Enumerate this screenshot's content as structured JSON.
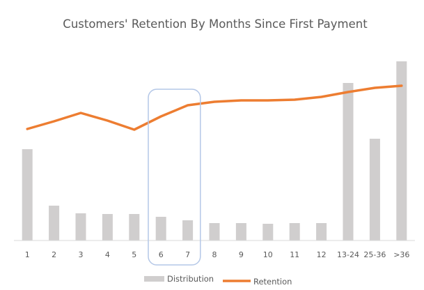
{
  "chart_data": {
    "type": "bar",
    "title": "Customers' Retention By Months Since First Payment",
    "xlabel": "",
    "ylabel": "",
    "categories": [
      "1",
      "2",
      "3",
      "4",
      "5",
      "6",
      "7",
      "8",
      "9",
      "10",
      "11",
      "12",
      "13-24",
      "25-36",
      ">36"
    ],
    "series": [
      {
        "name": "Distribution",
        "type": "bar",
        "color": "#d0cece",
        "values": [
          131,
          50,
          39,
          38,
          38,
          34,
          29,
          25,
          25,
          24,
          25,
          25,
          226,
          146,
          257
        ]
      },
      {
        "name": "Retention",
        "type": "line",
        "color": "#ed7d31",
        "values": [
          160,
          171,
          183,
          172,
          159,
          178,
          194,
          199,
          201,
          201,
          202,
          206,
          213,
          219,
          222
        ]
      }
    ],
    "ylim": [
      0,
      260
    ],
    "grid": false,
    "legend_position": "bottom",
    "highlight": {
      "categories": [
        "6",
        "7"
      ],
      "color": "#b4c7e7"
    }
  }
}
